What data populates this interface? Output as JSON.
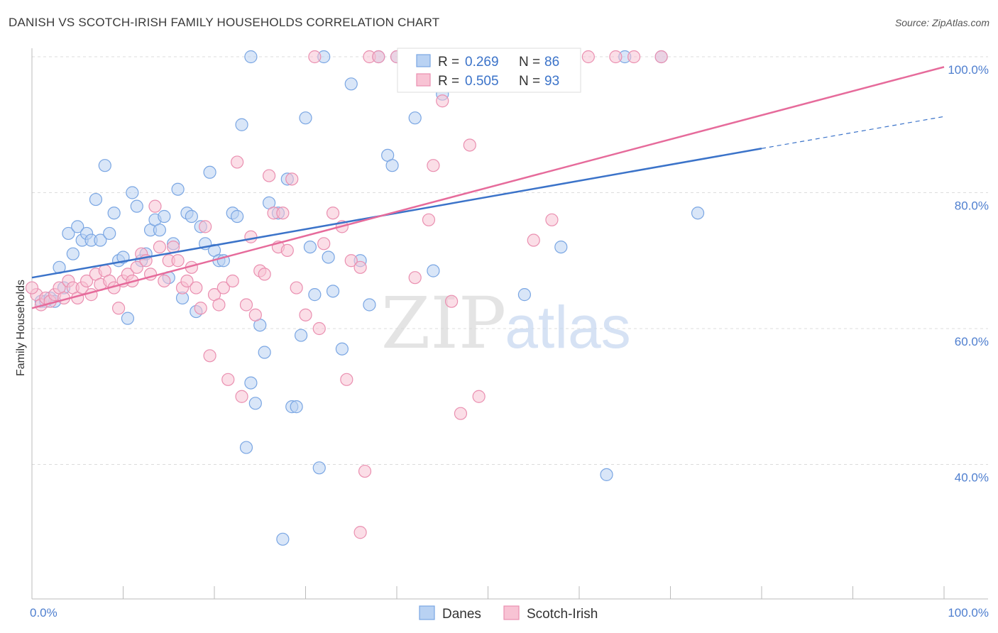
{
  "header": {
    "title": "DANISH VS SCOTCH-IRISH FAMILY HOUSEHOLDS CORRELATION CHART",
    "source": "Source: ZipAtlas.com"
  },
  "watermark": {
    "zip": "ZIP",
    "atlas": "atlas"
  },
  "legend": {
    "r_label": "R =",
    "n_label": "N =",
    "entries": [
      {
        "r": "0.269",
        "n": "86",
        "color": "#7aa6e3",
        "fill": "#b9d2f3"
      },
      {
        "r": "0.505",
        "n": "93",
        "color": "#ea8fb0",
        "fill": "#f8c3d4"
      }
    ]
  },
  "chart_data": {
    "type": "scatter",
    "title": "DANISH VS SCOTCH-IRISH FAMILY HOUSEHOLDS CORRELATION CHART",
    "ylabel": "Family Households",
    "xlim": [
      0,
      100
    ],
    "ylim": [
      20,
      100
    ],
    "y_ticks": [
      "40.0%",
      "60.0%",
      "80.0%",
      "100.0%"
    ],
    "x_tick_labels": [
      "0.0%",
      "100.0%"
    ],
    "grid": true,
    "legend_position": "top-center",
    "series": [
      {
        "name": "Danes",
        "color": "#3b73c9",
        "fill": "#b9d2f3",
        "stroke": "#7aa6e3",
        "trend": {
          "x0": 0,
          "y0": 67.5,
          "x1": 80,
          "y1": 86.5,
          "dash_to_x": 100,
          "dash_to_y": 91.2
        },
        "points": [
          [
            1,
            64
          ],
          [
            1.5,
            64
          ],
          [
            2,
            64.5
          ],
          [
            2.5,
            64
          ],
          [
            3,
            69
          ],
          [
            3.5,
            66
          ],
          [
            4,
            74
          ],
          [
            4.5,
            71
          ],
          [
            5,
            75
          ],
          [
            5.5,
            73
          ],
          [
            6,
            74
          ],
          [
            6.5,
            73
          ],
          [
            7,
            79
          ],
          [
            7.5,
            73
          ],
          [
            8,
            84
          ],
          [
            8.5,
            74
          ],
          [
            9,
            77
          ],
          [
            9.5,
            70
          ],
          [
            10,
            70.5
          ],
          [
            10.5,
            61.5
          ],
          [
            11,
            80
          ],
          [
            11.5,
            78
          ],
          [
            12,
            70
          ],
          [
            12.5,
            71
          ],
          [
            13,
            74.5
          ],
          [
            13.5,
            76
          ],
          [
            14,
            74.5
          ],
          [
            14.5,
            76.5
          ],
          [
            15,
            67.5
          ],
          [
            15.5,
            72.5
          ],
          [
            16,
            80.5
          ],
          [
            16.5,
            64.5
          ],
          [
            17,
            77
          ],
          [
            17.5,
            76.5
          ],
          [
            18,
            62.5
          ],
          [
            18.5,
            75
          ],
          [
            19,
            72.5
          ],
          [
            19.5,
            83
          ],
          [
            20,
            71.5
          ],
          [
            20.5,
            70
          ],
          [
            21,
            70
          ],
          [
            22,
            77
          ],
          [
            22.5,
            76.5
          ],
          [
            23,
            90
          ],
          [
            23.5,
            42.5
          ],
          [
            24,
            52
          ],
          [
            24.5,
            49
          ],
          [
            25,
            60.5
          ],
          [
            25.5,
            56.5
          ],
          [
            26,
            78.5
          ],
          [
            27,
            77
          ],
          [
            27.5,
            29
          ],
          [
            28,
            82
          ],
          [
            28.5,
            48.5
          ],
          [
            29,
            48.5
          ],
          [
            29.5,
            59
          ],
          [
            30,
            91
          ],
          [
            30.5,
            72
          ],
          [
            31,
            65
          ],
          [
            31.5,
            39.5
          ],
          [
            32,
            100
          ],
          [
            32.5,
            70.5
          ],
          [
            33,
            65.5
          ],
          [
            34,
            57
          ],
          [
            35,
            96
          ],
          [
            36,
            70
          ],
          [
            37,
            63.5
          ],
          [
            38,
            100
          ],
          [
            39,
            85.5
          ],
          [
            39.5,
            84
          ],
          [
            40,
            100
          ],
          [
            41,
            100
          ],
          [
            42,
            91
          ],
          [
            43,
            100
          ],
          [
            44,
            68.5
          ],
          [
            45,
            94.5
          ],
          [
            47,
            100
          ],
          [
            50,
            100
          ],
          [
            51,
            100
          ],
          [
            54,
            65
          ],
          [
            58,
            72
          ],
          [
            63,
            38.5
          ],
          [
            65,
            100
          ],
          [
            69,
            100
          ],
          [
            73,
            77
          ],
          [
            24,
            100
          ]
        ]
      },
      {
        "name": "Scotch-Irish",
        "color": "#e66b9b",
        "fill": "#f8c3d4",
        "stroke": "#ea8fb0",
        "trend": {
          "x0": 0,
          "y0": 63,
          "x1": 100,
          "y1": 98.5
        },
        "points": [
          [
            0.5,
            65
          ],
          [
            1,
            63.5
          ],
          [
            1.5,
            64.5
          ],
          [
            2,
            64
          ],
          [
            2.5,
            65
          ],
          [
            3,
            66
          ],
          [
            3.5,
            64.5
          ],
          [
            4,
            67
          ],
          [
            4.5,
            66
          ],
          [
            5,
            64.5
          ],
          [
            5.5,
            66
          ],
          [
            6,
            67
          ],
          [
            6.5,
            65
          ],
          [
            7,
            68
          ],
          [
            7.5,
            66.5
          ],
          [
            8,
            68.5
          ],
          [
            8.5,
            67
          ],
          [
            9,
            66
          ],
          [
            9.5,
            63
          ],
          [
            10,
            67
          ],
          [
            10.5,
            68
          ],
          [
            11,
            67
          ],
          [
            11.5,
            69
          ],
          [
            12,
            71
          ],
          [
            12.5,
            70
          ],
          [
            13,
            68
          ],
          [
            13.5,
            78
          ],
          [
            14,
            72
          ],
          [
            14.5,
            67
          ],
          [
            15,
            70
          ],
          [
            15.5,
            72
          ],
          [
            16,
            70
          ],
          [
            16.5,
            66
          ],
          [
            17,
            67
          ],
          [
            17.5,
            69
          ],
          [
            18,
            66
          ],
          [
            18.5,
            63
          ],
          [
            19,
            75
          ],
          [
            19.5,
            56
          ],
          [
            20,
            65
          ],
          [
            20.5,
            63.5
          ],
          [
            21,
            66
          ],
          [
            21.5,
            52.5
          ],
          [
            22,
            67
          ],
          [
            22.5,
            84.5
          ],
          [
            23,
            50
          ],
          [
            23.5,
            63.5
          ],
          [
            24,
            73.5
          ],
          [
            24.5,
            62
          ],
          [
            25,
            68.5
          ],
          [
            25.5,
            68
          ],
          [
            26,
            82.5
          ],
          [
            26.5,
            77
          ],
          [
            27,
            72
          ],
          [
            27.5,
            77
          ],
          [
            28,
            71.5
          ],
          [
            28.5,
            82
          ],
          [
            29,
            66
          ],
          [
            30,
            62
          ],
          [
            31,
            100
          ],
          [
            31.5,
            60
          ],
          [
            32,
            72.5
          ],
          [
            33,
            77
          ],
          [
            34,
            75
          ],
          [
            34.5,
            52.5
          ],
          [
            35,
            70
          ],
          [
            36,
            69
          ],
          [
            36.5,
            39
          ],
          [
            37,
            100
          ],
          [
            38,
            100
          ],
          [
            40,
            100
          ],
          [
            41,
            100
          ],
          [
            42,
            67.5
          ],
          [
            43,
            100
          ],
          [
            43.5,
            76
          ],
          [
            44,
            84
          ],
          [
            45,
            93.5
          ],
          [
            46,
            64
          ],
          [
            47,
            47.5
          ],
          [
            48,
            87
          ],
          [
            49,
            50
          ],
          [
            51,
            100
          ],
          [
            53,
            100
          ],
          [
            55,
            73
          ],
          [
            57,
            76
          ],
          [
            59,
            100
          ],
          [
            61,
            100
          ],
          [
            64,
            100
          ],
          [
            66,
            100
          ],
          [
            69,
            100
          ],
          [
            0,
            66
          ],
          [
            36,
            30
          ],
          [
            50,
            100
          ]
        ]
      }
    ]
  },
  "bottom_legend": [
    {
      "label": "Danes",
      "fill": "#b9d2f3",
      "stroke": "#7aa6e3"
    },
    {
      "label": "Scotch-Irish",
      "fill": "#f8c3d4",
      "stroke": "#ea8fb0"
    }
  ]
}
